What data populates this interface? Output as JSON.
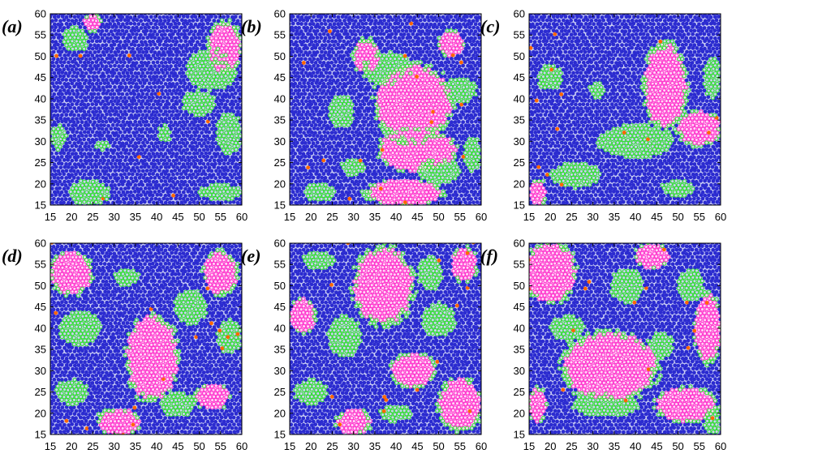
{
  "chart_data": [
    {
      "type": "scatter",
      "panel": "(a)",
      "xlim": [
        15,
        60
      ],
      "ylim": [
        15,
        60
      ],
      "xticks": [
        15,
        20,
        25,
        30,
        35,
        40,
        45,
        50,
        55,
        60
      ],
      "yticks": [
        15,
        20,
        25,
        30,
        35,
        40,
        45,
        50,
        55,
        60
      ],
      "domains": [
        {
          "shape": "ellipse",
          "cx": 56,
          "cy": 52,
          "rx": 4,
          "ry": 6
        },
        {
          "shape": "ellipse",
          "cx": 25,
          "cy": 58,
          "rx": 2,
          "ry": 2
        }
      ],
      "boundaries": [
        {
          "cx": 53,
          "cy": 47,
          "rx": 6,
          "ry": 5
        },
        {
          "cx": 50,
          "cy": 39,
          "rx": 4,
          "ry": 3
        },
        {
          "cx": 57,
          "cy": 32,
          "rx": 3,
          "ry": 5
        },
        {
          "cx": 21,
          "cy": 54,
          "rx": 3,
          "ry": 3
        },
        {
          "cx": 24,
          "cy": 18,
          "rx": 5,
          "ry": 3
        },
        {
          "cx": 55,
          "cy": 18,
          "rx": 5,
          "ry": 2
        },
        {
          "cx": 17,
          "cy": 31,
          "rx": 2,
          "ry": 3
        },
        {
          "cx": 42,
          "cy": 32,
          "rx": 1.5,
          "ry": 2
        },
        {
          "cx": 27,
          "cy": 29,
          "rx": 2,
          "ry": 1
        }
      ]
    },
    {
      "type": "scatter",
      "panel": "(b)",
      "xlim": [
        15,
        60
      ],
      "ylim": [
        15,
        60
      ],
      "xticks": [
        15,
        20,
        25,
        30,
        35,
        40,
        45,
        50,
        55,
        60
      ],
      "yticks": [
        15,
        20,
        25,
        30,
        35,
        40,
        45,
        50,
        55,
        60
      ],
      "domains": [
        {
          "shape": "ellipse",
          "cx": 44,
          "cy": 39,
          "rx": 9,
          "ry": 9
        },
        {
          "shape": "ellipse",
          "cx": 45,
          "cy": 28,
          "rx": 9,
          "ry": 5
        },
        {
          "shape": "ellipse",
          "cx": 42,
          "cy": 18,
          "rx": 9,
          "ry": 3
        },
        {
          "shape": "ellipse",
          "cx": 33,
          "cy": 50,
          "rx": 3,
          "ry": 4
        },
        {
          "shape": "ellipse",
          "cx": 53,
          "cy": 53,
          "rx": 3,
          "ry": 3
        }
      ],
      "boundaries": [
        {
          "cx": 38,
          "cy": 47,
          "rx": 6,
          "ry": 4
        },
        {
          "cx": 50,
          "cy": 23,
          "rx": 5,
          "ry": 3
        },
        {
          "cx": 27,
          "cy": 37,
          "rx": 3,
          "ry": 4
        },
        {
          "cx": 55,
          "cy": 42,
          "rx": 4,
          "ry": 3
        },
        {
          "cx": 58,
          "cy": 27,
          "rx": 2,
          "ry": 4
        },
        {
          "cx": 22,
          "cy": 18,
          "rx": 4,
          "ry": 2
        },
        {
          "cx": 30,
          "cy": 24,
          "rx": 3,
          "ry": 2
        }
      ]
    },
    {
      "type": "scatter",
      "panel": "(c)",
      "xlim": [
        15,
        60
      ],
      "ylim": [
        15,
        60
      ],
      "xticks": [
        15,
        20,
        25,
        30,
        35,
        40,
        45,
        50,
        55,
        60
      ],
      "yticks": [
        15,
        20,
        25,
        30,
        35,
        40,
        45,
        50,
        55,
        60
      ],
      "domains": [
        {
          "shape": "ellipse",
          "cx": 47,
          "cy": 43,
          "rx": 5,
          "ry": 10
        },
        {
          "shape": "ellipse",
          "cx": 55,
          "cy": 33,
          "rx": 5,
          "ry": 4
        },
        {
          "shape": "ellipse",
          "cx": 17,
          "cy": 18,
          "rx": 2,
          "ry": 3
        }
      ],
      "boundaries": [
        {
          "cx": 40,
          "cy": 30,
          "rx": 9,
          "ry": 4
        },
        {
          "cx": 26,
          "cy": 22,
          "rx": 6,
          "ry": 3
        },
        {
          "cx": 58,
          "cy": 45,
          "rx": 2,
          "ry": 5
        },
        {
          "cx": 20,
          "cy": 45,
          "rx": 3,
          "ry": 3
        },
        {
          "cx": 31,
          "cy": 42,
          "rx": 2,
          "ry": 2
        },
        {
          "cx": 50,
          "cy": 19,
          "rx": 4,
          "ry": 2
        }
      ]
    },
    {
      "type": "scatter",
      "panel": "(d)",
      "xlim": [
        15,
        60
      ],
      "ylim": [
        15,
        60
      ],
      "xticks": [
        15,
        20,
        25,
        30,
        35,
        40,
        45,
        50,
        55,
        60
      ],
      "yticks": [
        15,
        20,
        25,
        30,
        35,
        40,
        45,
        50,
        55,
        60
      ],
      "domains": [
        {
          "shape": "ellipse",
          "cx": 20,
          "cy": 53,
          "rx": 5,
          "ry": 5
        },
        {
          "shape": "ellipse",
          "cx": 39,
          "cy": 33,
          "rx": 6,
          "ry": 10
        },
        {
          "shape": "ellipse",
          "cx": 55,
          "cy": 53,
          "rx": 4,
          "ry": 5
        },
        {
          "shape": "ellipse",
          "cx": 31,
          "cy": 18,
          "rx": 5,
          "ry": 3
        },
        {
          "shape": "ellipse",
          "cx": 53,
          "cy": 24,
          "rx": 4,
          "ry": 3
        }
      ],
      "boundaries": [
        {
          "cx": 22,
          "cy": 40,
          "rx": 5,
          "ry": 4
        },
        {
          "cx": 48,
          "cy": 45,
          "rx": 4,
          "ry": 4
        },
        {
          "cx": 20,
          "cy": 25,
          "rx": 4,
          "ry": 3
        },
        {
          "cx": 45,
          "cy": 22,
          "rx": 4,
          "ry": 3
        },
        {
          "cx": 57,
          "cy": 38,
          "rx": 3,
          "ry": 4
        },
        {
          "cx": 33,
          "cy": 52,
          "rx": 3,
          "ry": 2
        }
      ]
    },
    {
      "type": "scatter",
      "panel": "(e)",
      "xlim": [
        15,
        60
      ],
      "ylim": [
        15,
        60
      ],
      "xticks": [
        15,
        20,
        25,
        30,
        35,
        40,
        45,
        50,
        55,
        60
      ],
      "yticks": [
        15,
        20,
        25,
        30,
        35,
        40,
        45,
        50,
        55,
        60
      ],
      "domains": [
        {
          "shape": "ellipse",
          "cx": 37,
          "cy": 50,
          "rx": 7,
          "ry": 9
        },
        {
          "shape": "ellipse",
          "cx": 55,
          "cy": 22,
          "rx": 5,
          "ry": 6
        },
        {
          "shape": "ellipse",
          "cx": 44,
          "cy": 30,
          "rx": 5,
          "ry": 4
        },
        {
          "shape": "ellipse",
          "cx": 18,
          "cy": 43,
          "rx": 3,
          "ry": 4
        },
        {
          "shape": "ellipse",
          "cx": 30,
          "cy": 18,
          "rx": 4,
          "ry": 3
        },
        {
          "shape": "ellipse",
          "cx": 56,
          "cy": 55,
          "rx": 3,
          "ry": 4
        }
      ],
      "boundaries": [
        {
          "cx": 28,
          "cy": 38,
          "rx": 4,
          "ry": 5
        },
        {
          "cx": 50,
          "cy": 42,
          "rx": 4,
          "ry": 4
        },
        {
          "cx": 20,
          "cy": 25,
          "rx": 4,
          "ry": 3
        },
        {
          "cx": 48,
          "cy": 53,
          "rx": 3,
          "ry": 4
        },
        {
          "cx": 40,
          "cy": 20,
          "rx": 4,
          "ry": 2
        },
        {
          "cx": 22,
          "cy": 56,
          "rx": 4,
          "ry": 2
        }
      ]
    },
    {
      "type": "scatter",
      "panel": "(f)",
      "xlim": [
        15,
        60
      ],
      "ylim": [
        15,
        60
      ],
      "xticks": [
        15,
        20,
        25,
        30,
        35,
        40,
        45,
        50,
        55,
        60
      ],
      "yticks": [
        15,
        20,
        25,
        30,
        35,
        40,
        45,
        50,
        55,
        60
      ],
      "domains": [
        {
          "shape": "ellipse",
          "cx": 20,
          "cy": 53,
          "rx": 6,
          "ry": 7
        },
        {
          "shape": "ellipse",
          "cx": 34,
          "cy": 31,
          "rx": 11,
          "ry": 8
        },
        {
          "shape": "ellipse",
          "cx": 52,
          "cy": 22,
          "rx": 7,
          "ry": 4
        },
        {
          "shape": "ellipse",
          "cx": 57,
          "cy": 40,
          "rx": 3,
          "ry": 8
        },
        {
          "shape": "ellipse",
          "cx": 17,
          "cy": 22,
          "rx": 2,
          "ry": 4
        },
        {
          "shape": "ellipse",
          "cx": 44,
          "cy": 57,
          "rx": 4,
          "ry": 3
        }
      ],
      "boundaries": [
        {
          "cx": 33,
          "cy": 22,
          "rx": 8,
          "ry": 3
        },
        {
          "cx": 38,
          "cy": 50,
          "rx": 4,
          "ry": 4
        },
        {
          "cx": 53,
          "cy": 50,
          "rx": 3,
          "ry": 4
        },
        {
          "cx": 24,
          "cy": 40,
          "rx": 4,
          "ry": 3
        },
        {
          "cx": 46,
          "cy": 36,
          "rx": 3,
          "ry": 3
        },
        {
          "cx": 58,
          "cy": 18,
          "rx": 2,
          "ry": 3
        }
      ]
    }
  ],
  "colors": {
    "hexatic": "#2b2bd0",
    "square": "#ff33cc",
    "square_fill": "#ffd6f6",
    "boundary": "#33dd33",
    "defect": "#ff6600",
    "axis": "#000000"
  }
}
